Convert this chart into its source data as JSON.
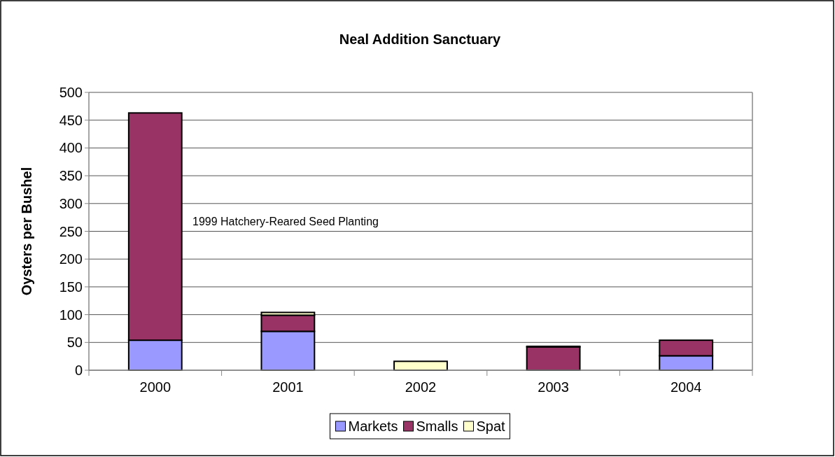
{
  "chart_data": {
    "type": "bar",
    "title": "Neal Addition Sanctuary",
    "ylabel": "Oysters per Bushel",
    "categories": [
      "2000",
      "2001",
      "2002",
      "2003",
      "2004"
    ],
    "stacked": true,
    "series": [
      {
        "name": "Markets",
        "color": "#9999ff",
        "values": [
          54,
          70,
          null,
          null,
          26
        ]
      },
      {
        "name": "Smalls",
        "color": "#993366",
        "values": [
          409,
          29,
          null,
          42,
          28
        ]
      },
      {
        "name": "Spat",
        "color": "#ffffcc",
        "values": [
          0,
          5,
          16,
          1,
          0
        ]
      }
    ],
    "ylim": [
      0,
      500
    ],
    "yticks": [
      0,
      50,
      100,
      150,
      200,
      250,
      300,
      350,
      400,
      450,
      500
    ],
    "grid": "y",
    "legend": "bottom",
    "annotations": [
      "1999 Hatchery-Reared Seed Planting"
    ]
  }
}
